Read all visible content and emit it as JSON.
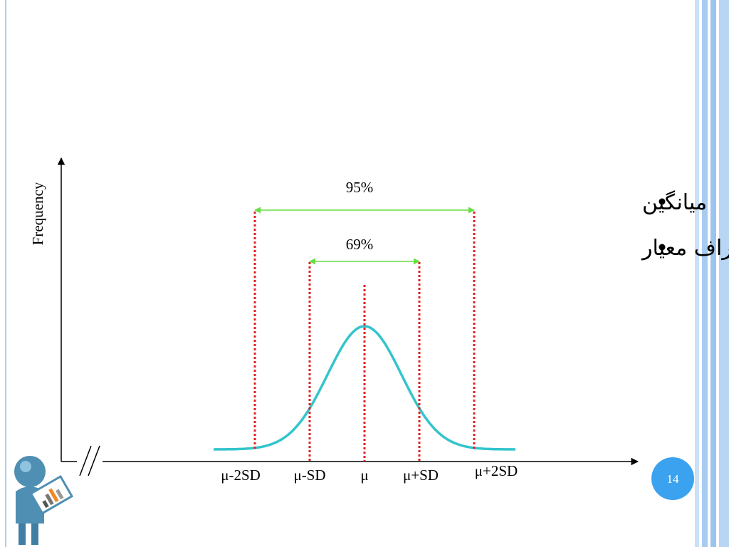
{
  "axis": {
    "y_label": "Frequency"
  },
  "intervals": [
    {
      "label": "95%"
    },
    {
      "label": "69%"
    }
  ],
  "x_labels": [
    "μ-2SD",
    "μ-SD",
    "μ",
    "μ+SD",
    "μ+2SD"
  ],
  "bullets": [
    "میانگین",
    "انحراف معیار"
  ],
  "page_number": 14
}
